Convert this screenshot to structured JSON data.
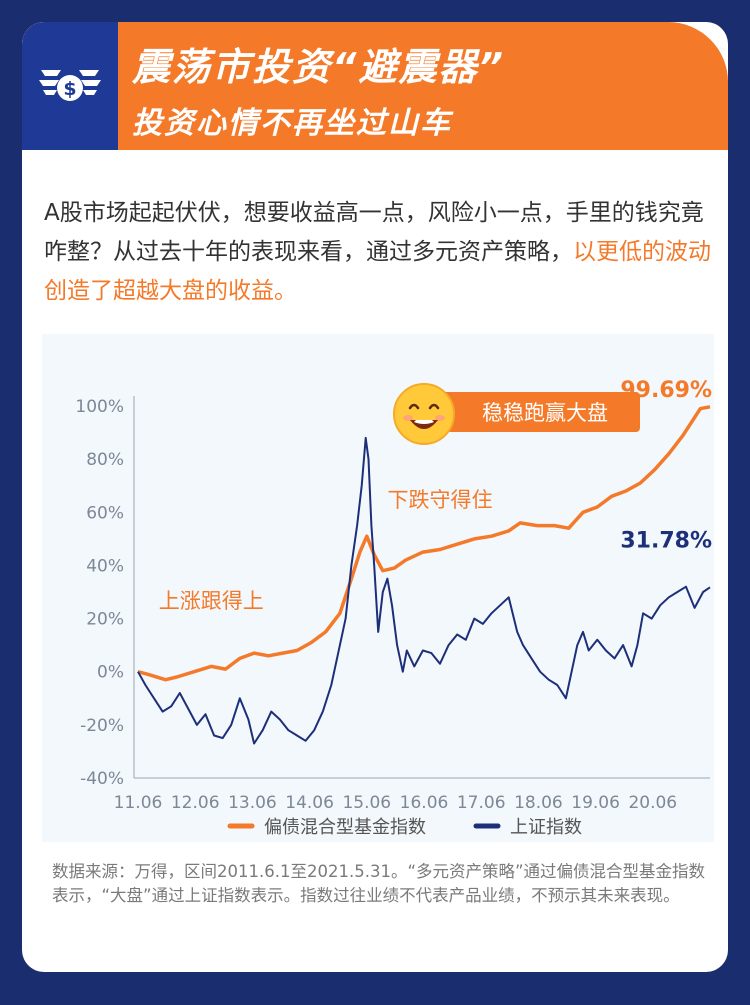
{
  "header": {
    "title": "震荡市投资“避震器”",
    "subtitle": "投资心情不再坐过山车",
    "logo_icon": "flying-money-icon"
  },
  "intro": {
    "text_normal": "A股市场起起伏伏，想要收益高一点，风险小一点，手里的钱究竟咋整？从过去十年的表现来看，通过多元资产策略，",
    "text_highlight": "以更低的波动创造了超越大盘的收益。"
  },
  "colors": {
    "orange": "#f47a2a",
    "navy": "#1a2d6e",
    "blue_line": "#1e2f7a",
    "panel_bg": "#f2f8fc"
  },
  "chart_data": {
    "type": "line",
    "title": "",
    "xlabel": "",
    "ylabel": "",
    "x_ticks": [
      "11.06",
      "12.06",
      "13.06",
      "14.06",
      "15.06",
      "16.06",
      "17.06",
      "18.06",
      "19.06",
      "20.06"
    ],
    "x_range": [
      2011.42,
      2021.42
    ],
    "ylim": [
      -40,
      100
    ],
    "y_ticks": [
      100,
      80,
      60,
      40,
      20,
      0,
      -20,
      -40
    ],
    "y_tick_labels": [
      "100%",
      "80%",
      "60%",
      "40%",
      "20%",
      "0%",
      "-20%",
      "-40%"
    ],
    "grid": false,
    "legend_position": "bottom",
    "series": [
      {
        "name": "偏债混合型基金指数",
        "color": "#f47a2a",
        "x": [
          2011.42,
          2011.6,
          2011.9,
          2012.1,
          2012.4,
          2012.7,
          2012.95,
          2013.2,
          2013.45,
          2013.7,
          2013.95,
          2014.2,
          2014.45,
          2014.7,
          2014.95,
          2015.15,
          2015.3,
          2015.42,
          2015.55,
          2015.7,
          2015.9,
          2016.1,
          2016.4,
          2016.7,
          2017.0,
          2017.3,
          2017.6,
          2017.9,
          2018.1,
          2018.4,
          2018.7,
          2018.95,
          2019.2,
          2019.45,
          2019.7,
          2019.95,
          2020.2,
          2020.45,
          2020.7,
          2020.95,
          2021.1,
          2021.25,
          2021.42
        ],
        "y": [
          0,
          -1,
          -3,
          -2,
          0,
          2,
          1,
          5,
          7,
          6,
          7,
          8,
          11,
          15,
          22,
          35,
          45,
          51,
          44,
          38,
          39,
          42,
          45,
          46,
          48,
          50,
          51,
          53,
          56,
          55,
          55,
          54,
          60,
          62,
          66,
          68,
          71,
          76,
          82,
          89,
          94,
          99,
          99.69
        ]
      },
      {
        "name": "上证指数",
        "color": "#1e2f7a",
        "x": [
          2011.42,
          2011.55,
          2011.7,
          2011.85,
          2012.0,
          2012.15,
          2012.3,
          2012.45,
          2012.6,
          2012.75,
          2012.9,
          2013.05,
          2013.2,
          2013.35,
          2013.45,
          2013.6,
          2013.75,
          2013.9,
          2014.05,
          2014.2,
          2014.35,
          2014.5,
          2014.65,
          2014.8,
          2014.95,
          2015.05,
          2015.15,
          2015.25,
          2015.33,
          2015.4,
          2015.45,
          2015.5,
          2015.55,
          2015.62,
          2015.7,
          2015.78,
          2015.86,
          2015.95,
          2016.05,
          2016.12,
          2016.25,
          2016.4,
          2016.55,
          2016.7,
          2016.85,
          2017.0,
          2017.15,
          2017.3,
          2017.45,
          2017.6,
          2017.75,
          2017.9,
          2018.05,
          2018.15,
          2018.3,
          2018.45,
          2018.6,
          2018.75,
          2018.9,
          2019.0,
          2019.1,
          2019.2,
          2019.3,
          2019.45,
          2019.6,
          2019.75,
          2019.9,
          2020.05,
          2020.15,
          2020.25,
          2020.4,
          2020.55,
          2020.7,
          2020.85,
          2021.0,
          2021.15,
          2021.3,
          2021.42
        ],
        "y": [
          0,
          -5,
          -10,
          -15,
          -13,
          -8,
          -14,
          -20,
          -16,
          -24,
          -25,
          -20,
          -10,
          -18,
          -27,
          -22,
          -15,
          -18,
          -22,
          -24,
          -26,
          -22,
          -15,
          -5,
          10,
          20,
          40,
          55,
          70,
          88,
          80,
          55,
          40,
          15,
          30,
          35,
          25,
          10,
          0,
          8,
          2,
          8,
          7,
          3,
          10,
          14,
          12,
          20,
          18,
          22,
          25,
          28,
          15,
          10,
          5,
          0,
          -3,
          -5,
          -10,
          0,
          10,
          15,
          8,
          12,
          8,
          5,
          10,
          2,
          10,
          22,
          20,
          25,
          28,
          30,
          32,
          24,
          30,
          31.78
        ]
      }
    ],
    "annotations": [
      {
        "text": "99.69%",
        "series": 0,
        "color": "#f47a2a"
      },
      {
        "text": "31.78%",
        "series": 1,
        "color": "#1e2f7a"
      },
      {
        "text": "上涨跟得上",
        "color": "#f47a2a"
      },
      {
        "text": "下跌守得住",
        "color": "#f47a2a"
      },
      {
        "text": "稳稳跑赢大盘",
        "color": "#ffffff",
        "badge": true,
        "icon": "smiley-face-icon"
      }
    ]
  },
  "footnote": "数据来源：万得，区间2011.6.1至2021.5.31。“多元资产策略”通过偏债混合型基金指数表示，“大盘”通过上证指数表示。指数过往业绩不代表产品业绩，不预示其未来表现。"
}
